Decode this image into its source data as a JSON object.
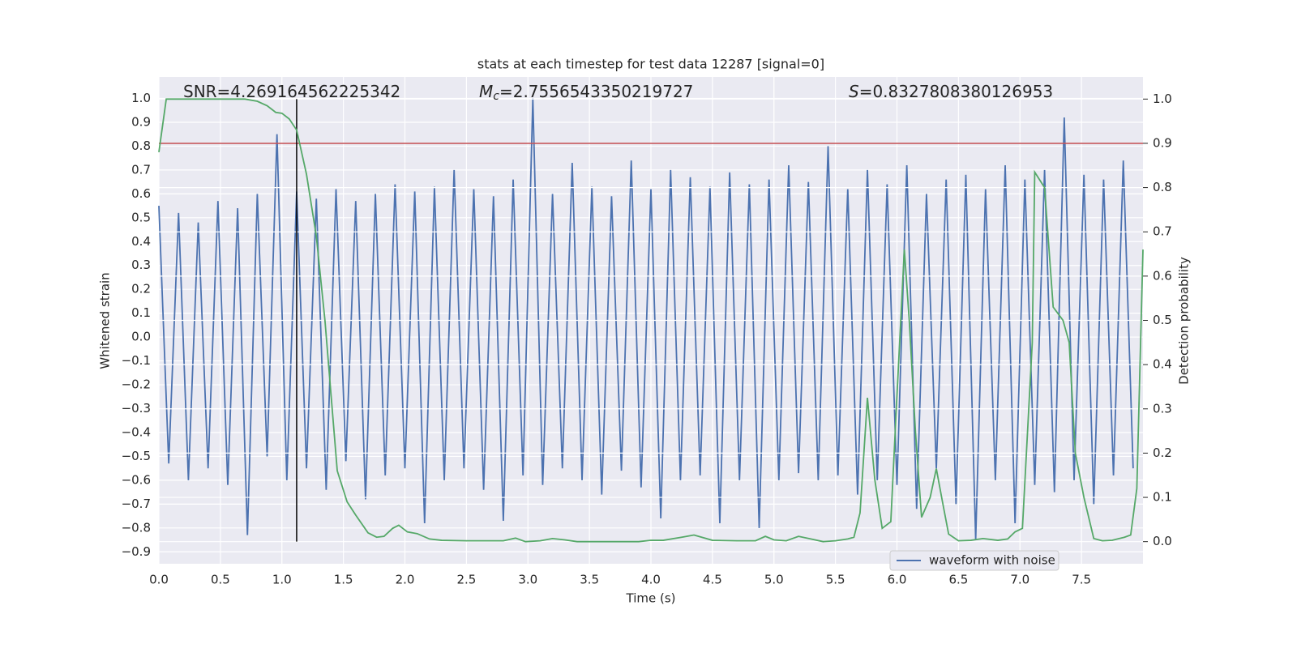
{
  "chart_data": {
    "type": "line",
    "title": "stats at each timestep for test data 12287 [signal=0]",
    "xlabel": "Time (s)",
    "ylabel": "Whitened strain",
    "y2label": "Detection probability",
    "xlim": [
      0,
      8.0
    ],
    "ylim": [
      -0.95,
      1.09
    ],
    "y2lim": [
      -0.05,
      1.05
    ],
    "xticks": [
      {
        "value": 0,
        "label": "0.0"
      },
      0.5,
      {
        "value": 1,
        "label": "1.0"
      },
      1.5,
      {
        "value": 2,
        "label": "2.0"
      },
      2.5,
      {
        "value": 3,
        "label": "3.0"
      },
      3.5,
      {
        "value": 4,
        "label": "4.0"
      },
      4.5,
      {
        "value": 5,
        "label": "5.0"
      },
      5.5,
      {
        "value": 6,
        "label": "6.0"
      },
      6.5,
      {
        "value": 7,
        "label": "7.0"
      },
      7.5
    ],
    "yticks": [
      {
        "value": -0.9,
        "label": "−0.9"
      },
      {
        "value": -0.8,
        "label": "−0.8"
      },
      {
        "value": -0.7,
        "label": "−0.7"
      },
      {
        "value": -0.6,
        "label": "−0.6"
      },
      {
        "value": -0.5,
        "label": "−0.5"
      },
      {
        "value": -0.4,
        "label": "−0.4"
      },
      {
        "value": -0.3,
        "label": "−0.3"
      },
      {
        "value": -0.2,
        "label": "−0.2"
      },
      {
        "value": -0.1,
        "label": "−0.1"
      },
      {
        "value": 0,
        "label": "0.0"
      },
      0.1,
      0.2,
      0.3,
      0.4,
      0.5,
      0.6,
      0.7,
      0.8,
      0.9,
      {
        "value": 1,
        "label": "1.0"
      }
    ],
    "y2ticks": [
      {
        "value": 0,
        "label": "0.0"
      },
      0.1,
      0.2,
      0.3,
      0.4,
      0.5,
      0.6,
      0.7,
      0.8,
      0.9,
      {
        "value": 1,
        "label": "1.0"
      }
    ],
    "grid": true,
    "legend": "lower right",
    "annotations": [
      {
        "text": "SNR=4.269164562225342"
      },
      {
        "symbol": "M",
        "subscript": "c",
        "text": "=2.7556543350219727"
      },
      {
        "symbol": "S",
        "text": "=0.8327808380126953"
      }
    ],
    "hline": {
      "y": 0.9,
      "axis": "y2",
      "color": "#c44e52"
    },
    "vline": {
      "x": 1.12,
      "color": "#000000"
    },
    "series": [
      {
        "name": "waveform with noise",
        "color": "#4c72b0",
        "x": [
          0,
          0.08,
          0.16,
          0.24,
          0.32,
          0.4,
          0.48,
          0.56,
          0.64,
          0.72,
          0.8,
          0.88,
          0.96,
          1.04,
          1.12,
          1.2,
          1.28,
          1.36,
          1.44,
          1.52,
          1.6,
          1.68,
          1.76,
          1.84,
          1.92,
          2,
          2.08,
          2.16,
          2.24,
          2.32,
          2.4,
          2.48,
          2.56,
          2.64,
          2.72,
          2.8,
          2.88,
          2.96,
          3.04,
          3.12,
          3.2,
          3.28,
          3.36,
          3.44,
          3.52,
          3.6,
          3.68,
          3.76,
          3.84,
          3.92,
          4,
          4.08,
          4.16,
          4.24,
          4.32,
          4.4,
          4.48,
          4.56,
          4.64,
          4.72,
          4.8,
          4.88,
          4.96,
          5.04,
          5.12,
          5.2,
          5.28,
          5.36,
          5.44,
          5.52,
          5.6,
          5.68,
          5.76,
          5.84,
          5.92,
          6,
          6.08,
          6.16,
          6.24,
          6.32,
          6.4,
          6.48,
          6.56,
          6.64,
          6.72,
          6.8,
          6.88,
          6.96,
          7.04,
          7.12,
          7.2,
          7.28,
          7.36,
          7.44,
          7.52,
          7.6,
          7.68,
          7.76,
          7.84,
          7.92
        ],
        "values": [
          0.55,
          -0.53,
          0.52,
          -0.6,
          0.48,
          -0.55,
          0.57,
          -0.62,
          0.54,
          -0.83,
          0.6,
          -0.5,
          0.85,
          -0.6,
          0.61,
          -0.55,
          0.58,
          -0.64,
          0.62,
          -0.52,
          0.57,
          -0.68,
          0.6,
          -0.58,
          0.64,
          -0.55,
          0.61,
          -0.78,
          0.63,
          -0.6,
          0.7,
          -0.55,
          0.62,
          -0.64,
          0.59,
          -0.77,
          0.66,
          -0.58,
          1.0,
          -0.62,
          0.6,
          -0.55,
          0.73,
          -0.6,
          0.63,
          -0.66,
          0.59,
          -0.56,
          0.74,
          -0.63,
          0.62,
          -0.76,
          0.7,
          -0.6,
          0.67,
          -0.58,
          0.63,
          -0.78,
          0.69,
          -0.6,
          0.64,
          -0.8,
          0.66,
          -0.6,
          0.72,
          -0.57,
          0.65,
          -0.6,
          0.8,
          -0.58,
          0.62,
          -0.66,
          0.7,
          -0.6,
          0.64,
          -0.62,
          0.72,
          -0.72,
          0.6,
          -0.55,
          0.66,
          -0.7,
          0.68,
          -0.85,
          0.62,
          -0.6,
          0.72,
          -0.78,
          0.66,
          -0.62,
          0.7,
          -0.65,
          0.92,
          -0.6,
          0.68,
          -0.7,
          0.66,
          -0.58,
          0.74,
          -0.55
        ]
      },
      {
        "name": "Detection probability",
        "color": "#55a868",
        "axis": "y2",
        "x": [
          0,
          0.06,
          0.15,
          0.3,
          0.5,
          0.7,
          0.8,
          0.88,
          0.95,
          1,
          1.06,
          1.12,
          1.2,
          1.28,
          1.35,
          1.4,
          1.45,
          1.53,
          1.6,
          1.7,
          1.77,
          1.83,
          1.9,
          1.95,
          2.02,
          2.1,
          2.2,
          2.3,
          2.5,
          2.8,
          2.9,
          2.98,
          3.1,
          3.2,
          3.3,
          3.4,
          3.7,
          3.9,
          4,
          4.1,
          4.25,
          4.35,
          4.5,
          4.7,
          4.85,
          4.93,
          5,
          5.1,
          5.2,
          5.3,
          5.4,
          5.5,
          5.6,
          5.65,
          5.7,
          5.76,
          5.82,
          5.88,
          5.95,
          6,
          6.06,
          6.1,
          6.15,
          6.2,
          6.27,
          6.32,
          6.37,
          6.42,
          6.5,
          6.6,
          6.7,
          6.82,
          6.9,
          6.96,
          7.02,
          7.1,
          7.12,
          7.2,
          7.27,
          7.35,
          7.4,
          7.45,
          7.52,
          7.6,
          7.67,
          7.75,
          7.85,
          7.9,
          7.95,
          8
        ],
        "values": [
          0.88,
          1.0,
          1.0,
          1.0,
          1.0,
          1.0,
          0.995,
          0.985,
          0.97,
          0.968,
          0.955,
          0.93,
          0.83,
          0.69,
          0.5,
          0.33,
          0.16,
          0.09,
          0.06,
          0.02,
          0.01,
          0.012,
          0.03,
          0.037,
          0.022,
          0.018,
          0.006,
          0.003,
          0.002,
          0.002,
          0.008,
          0.0,
          0.002,
          0.007,
          0.004,
          0.0,
          0.0,
          0.0,
          0.003,
          0.003,
          0.01,
          0.015,
          0.003,
          0.002,
          0.002,
          0.012,
          0.004,
          0.002,
          0.012,
          0.006,
          0.0,
          0.002,
          0.006,
          0.01,
          0.065,
          0.325,
          0.14,
          0.03,
          0.045,
          0.33,
          0.66,
          0.5,
          0.25,
          0.055,
          0.1,
          0.165,
          0.09,
          0.017,
          0.002,
          0.003,
          0.007,
          0.003,
          0.006,
          0.022,
          0.03,
          0.45,
          0.835,
          0.8,
          0.53,
          0.5,
          0.45,
          0.2,
          0.1,
          0.007,
          0.002,
          0.003,
          0.01,
          0.015,
          0.12,
          0.66
        ]
      }
    ]
  }
}
